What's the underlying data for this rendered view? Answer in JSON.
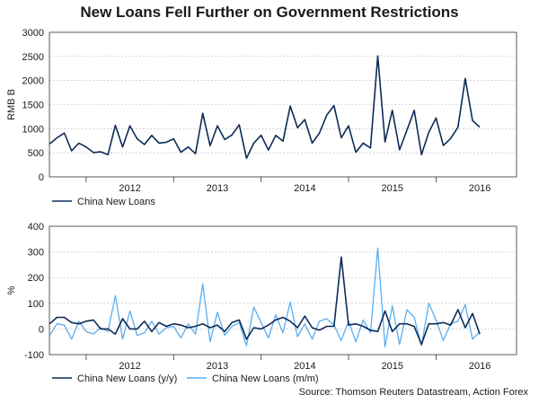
{
  "title": "New Loans Fell Further on Government Restrictions",
  "source": "Source: Thomson Reuters Datastream, Action Forex",
  "colors": {
    "dark": "#0d2b57",
    "light": "#5aaef0",
    "grid": "#bbbbbb",
    "axis": "#333333"
  },
  "chart_data": [
    {
      "type": "line",
      "ylabel": "RMB B",
      "ylim": [
        0,
        3000
      ],
      "yticks": [
        0,
        500,
        1000,
        1500,
        2000,
        2500,
        3000
      ],
      "x_range": [
        2011.58,
        2016.92
      ],
      "year_labels": [
        "2012",
        "2013",
        "2014",
        "2015",
        "2016"
      ],
      "year_boundaries": [
        2012,
        2013,
        2014,
        2015,
        2016,
        2017
      ],
      "grid": "horizontal",
      "legend_position": "bottom-left",
      "series": [
        {
          "name": "China New Loans",
          "color": "#0d2b57",
          "start": [
            2011,
            8
          ],
          "values": [
            685,
            810,
            910,
            540,
            700,
            620,
            505,
            520,
            460,
            1070,
            620,
            1060,
            790,
            670,
            860,
            700,
            720,
            790,
            510,
            620,
            480,
            1320,
            645,
            1060,
            775,
            870,
            1080,
            385,
            700,
            865,
            555,
            860,
            740,
            1470,
            1020,
            1190,
            700,
            910,
            1280,
            1480,
            810,
            1060,
            510,
            700,
            600,
            2510,
            725,
            1380,
            560,
            970,
            1380,
            460,
            925,
            1220,
            650,
            795,
            1030,
            2040,
            1170,
            1030
          ]
        }
      ]
    },
    {
      "type": "line",
      "ylabel": "%",
      "ylim": [
        -100,
        400
      ],
      "yticks": [
        -100,
        0,
        100,
        200,
        300,
        400
      ],
      "x_range": [
        2011.58,
        2016.92
      ],
      "year_labels": [
        "2012",
        "2013",
        "2014",
        "2015",
        "2016"
      ],
      "year_boundaries": [
        2012,
        2013,
        2014,
        2015,
        2016,
        2017
      ],
      "grid": "horizontal",
      "legend_position": "bottom-left",
      "series": [
        {
          "name": "China New Loans (y/y)",
          "color": "#0d2b57",
          "start": [
            2011,
            8
          ],
          "values": [
            20,
            45,
            45,
            25,
            20,
            30,
            35,
            0,
            0,
            -20,
            40,
            0,
            0,
            30,
            -10,
            25,
            10,
            20,
            15,
            5,
            10,
            20,
            5,
            15,
            -10,
            25,
            35,
            -40,
            5,
            0,
            15,
            35,
            45,
            30,
            5,
            50,
            5,
            -5,
            10,
            10,
            280,
            15,
            20,
            10,
            -5,
            -10,
            70,
            -10,
            20,
            20,
            10,
            -60,
            20,
            20,
            25,
            15,
            75,
            5,
            60,
            -20
          ]
        },
        {
          "name": "China New Loans (m/m)",
          "color": "#5aaef0",
          "start": [
            2011,
            8
          ],
          "values": [
            -25,
            20,
            15,
            -40,
            30,
            -10,
            -20,
            5,
            -10,
            130,
            -40,
            70,
            -25,
            -15,
            30,
            -20,
            5,
            10,
            -35,
            20,
            -20,
            175,
            -50,
            65,
            -25,
            10,
            25,
            -65,
            85,
            25,
            -35,
            55,
            -15,
            105,
            -30,
            20,
            -40,
            30,
            40,
            15,
            -45,
            30,
            -50,
            35,
            -15,
            315,
            -70,
            90,
            -60,
            75,
            45,
            -65,
            100,
            35,
            -45,
            20,
            30,
            95,
            -40,
            -10
          ]
        }
      ]
    }
  ]
}
